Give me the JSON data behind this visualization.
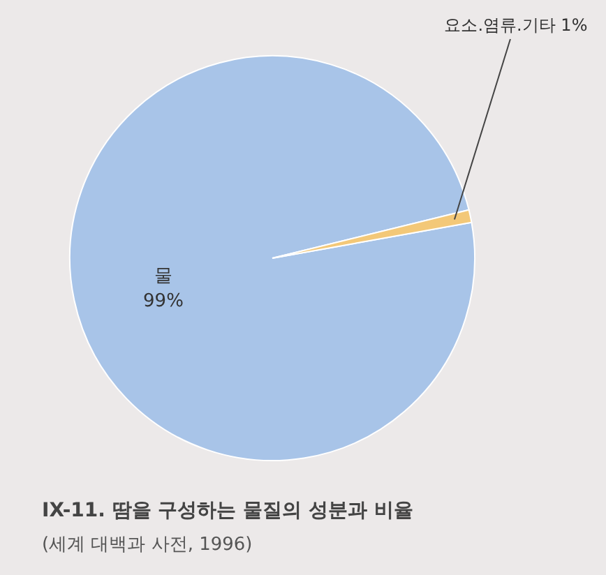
{
  "chart_data": {
    "type": "pie",
    "title": "IX-11. 땀을 구성하는 물질의 성분과 비율",
    "annotations": [
      "(세계 대백과 사전, 1996)"
    ],
    "categories": [
      "물",
      "요소.염류.기타"
    ],
    "values": [
      99,
      1
    ],
    "value_labels": [
      "99%",
      "1%"
    ],
    "colors": [
      "#a8c4e8",
      "#f3c878"
    ]
  }
}
